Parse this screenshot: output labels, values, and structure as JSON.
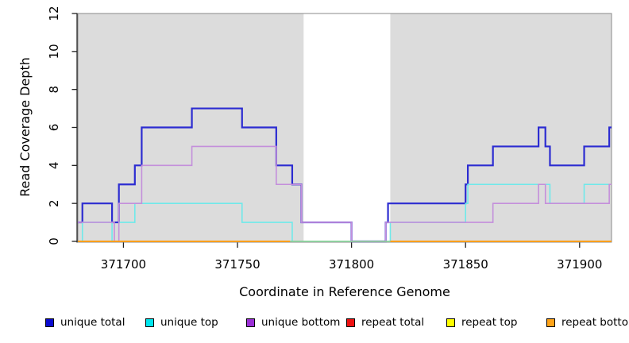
{
  "chart_data": {
    "type": "line",
    "step": true,
    "title": "",
    "xlabel": "Coordinate in Reference Genome",
    "ylabel": "Read Coverage Depth",
    "xlim": [
      371680,
      371914
    ],
    "ylim": [
      0,
      12
    ],
    "x_ticks": [
      371700,
      371750,
      371800,
      371850,
      371900
    ],
    "y_ticks": [
      0,
      2,
      4,
      6,
      8,
      10,
      12
    ],
    "grid": false,
    "panel_color": "#dcdcdc",
    "gap_band": {
      "from": 371779,
      "to": 371817,
      "color": "#ffffff"
    },
    "series": [
      {
        "name": "unique total",
        "color": "#2c2cd1",
        "width": 2.2,
        "points": [
          [
            371680,
            1
          ],
          [
            371682,
            2
          ],
          [
            371695,
            1
          ],
          [
            371698,
            3
          ],
          [
            371705,
            4
          ],
          [
            371708,
            6
          ],
          [
            371730,
            7
          ],
          [
            371752,
            6
          ],
          [
            371767,
            4
          ],
          [
            371774,
            3
          ],
          [
            371778,
            1
          ],
          [
            371800,
            0
          ],
          [
            371815,
            1
          ],
          [
            371816,
            2
          ],
          [
            371850,
            3
          ],
          [
            371851,
            4
          ],
          [
            371862,
            5
          ],
          [
            371882,
            6
          ],
          [
            371885,
            5
          ],
          [
            371887,
            4
          ],
          [
            371902,
            5
          ],
          [
            371913,
            6
          ],
          [
            371914,
            6
          ]
        ]
      },
      {
        "name": "unique top",
        "color": "#6fe9ea",
        "width": 1.6,
        "points": [
          [
            371680,
            0
          ],
          [
            371682,
            1
          ],
          [
            371695,
            0
          ],
          [
            371698,
            1
          ],
          [
            371705,
            2
          ],
          [
            371752,
            1
          ],
          [
            371774,
            0
          ],
          [
            371817,
            1
          ],
          [
            371850,
            2
          ],
          [
            371851,
            3
          ],
          [
            371887,
            2
          ],
          [
            371902,
            3
          ],
          [
            371914,
            3
          ]
        ]
      },
      {
        "name": "unique bottom",
        "color": "#c48fdb",
        "width": 1.6,
        "points": [
          [
            371680,
            1
          ],
          [
            371696,
            0
          ],
          [
            371698,
            2
          ],
          [
            371708,
            4
          ],
          [
            371730,
            5
          ],
          [
            371767,
            3
          ],
          [
            371778,
            1
          ],
          [
            371800,
            0
          ],
          [
            371815,
            1
          ],
          [
            371862,
            2
          ],
          [
            371882,
            3
          ],
          [
            371885,
            2
          ],
          [
            371913,
            3
          ],
          [
            371914,
            3
          ]
        ]
      },
      {
        "name": "repeat total",
        "color": "#dd2020",
        "width": 1.4,
        "y": 0,
        "segments": [
          [
            371680,
            371773
          ],
          [
            371817,
            371914
          ]
        ]
      },
      {
        "name": "repeat top",
        "color": "#f5f533",
        "width": 1.4,
        "y": 0,
        "segments": [
          [
            371680,
            371773
          ],
          [
            371817,
            371914
          ]
        ]
      },
      {
        "name": "gap marker",
        "color": "#8fd08f",
        "width": 1.6,
        "y": 0,
        "segments": [
          [
            371773,
            371817
          ]
        ]
      },
      {
        "name": "repeat bottom",
        "color": "#ff9d14",
        "width": 1.8,
        "y": 0,
        "segments": [
          [
            371680,
            371773
          ],
          [
            371817,
            371914
          ]
        ]
      }
    ]
  },
  "legend": {
    "items": [
      {
        "label": "unique total",
        "color": "#0a0ad0"
      },
      {
        "label": "unique top",
        "color": "#00e6ee"
      },
      {
        "label": "unique bottom",
        "color": "#9b2fd6"
      },
      {
        "label": "repeat total",
        "color": "#ee1111"
      },
      {
        "label": "repeat top",
        "color": "#ffff00"
      },
      {
        "label": "repeat bottom",
        "color": "#ffa318"
      }
    ]
  }
}
